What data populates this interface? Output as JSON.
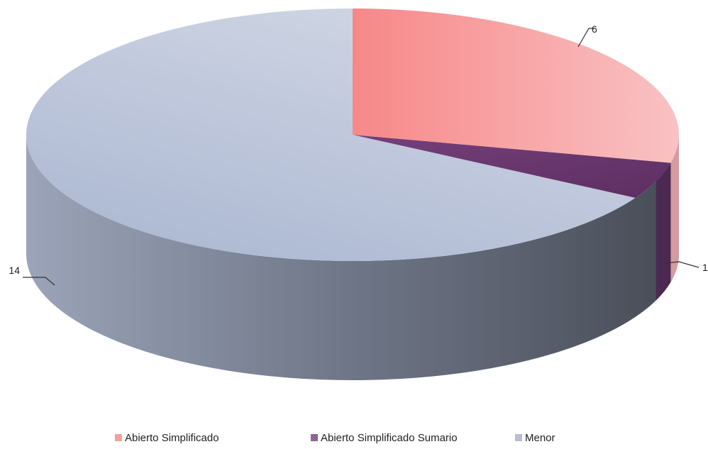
{
  "chart_data": {
    "type": "pie",
    "style": "3d",
    "title": "",
    "legend_position": "bottom",
    "slices": [
      {
        "name": "Abierto Simplificado",
        "value": 6,
        "color": "#f4a0a0"
      },
      {
        "name": "Abierto Simplificado Sumario",
        "value": 1,
        "color": "#6b3a6e"
      },
      {
        "name": "Menor",
        "value": 14,
        "color": "#b4bed6"
      }
    ]
  }
}
